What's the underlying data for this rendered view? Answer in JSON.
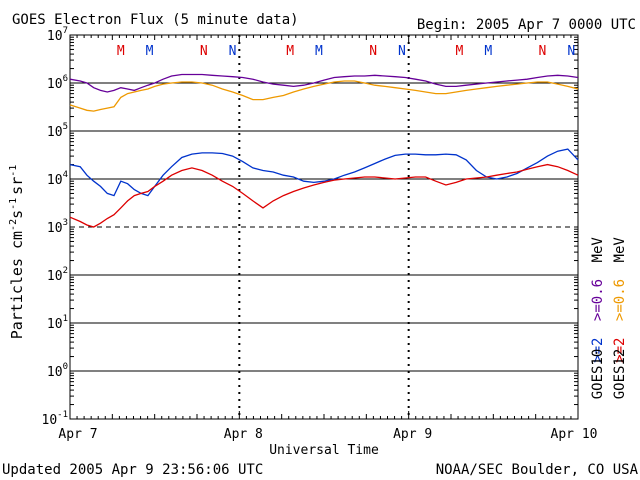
{
  "header": {
    "title": "GOES Electron Flux (5 minute data)",
    "begin": "Begin: 2005 Apr 7 0000 UTC"
  },
  "footer": {
    "updated": "Updated 2005 Apr  9 23:56:06 UTC",
    "credit": "NOAA/SEC Boulder, CO USA"
  },
  "colors": {
    "goes10_high": "#0033cc",
    "goes12_high": "#dd0000",
    "goes10_low": "#660099",
    "goes12_low": "#ee9900",
    "M_marker": "#dd0000",
    "N_marker": "#0033cc"
  },
  "chart_data": {
    "type": "line",
    "title": "GOES Electron Flux (5 minute data)",
    "xlabel": "Universal Time",
    "ylabel": "Particles cm-2s-1sr-1",
    "ylabel_main": "Particles cm",
    "ylabel_sup1": "-2",
    "ylabel_mid": "s",
    "ylabel_sup2": "-1",
    "ylabel_mid2": "sr",
    "ylabel_sup3": "-1",
    "x_ticks": [
      "Apr 7",
      "Apr 8",
      "Apr 9",
      "Apr 10"
    ],
    "xlim": [
      0,
      3
    ],
    "ylim": [
      0.1,
      10000000
    ],
    "yscale": "log",
    "y_ticks": [
      {
        "base": "10",
        "exp": "-1",
        "value": 0.1
      },
      {
        "base": "10",
        "exp": "0",
        "value": 1
      },
      {
        "base": "10",
        "exp": "1",
        "value": 10
      },
      {
        "base": "10",
        "exp": "2",
        "value": 100
      },
      {
        "base": "10",
        "exp": "3",
        "value": 1000
      },
      {
        "base": "10",
        "exp": "4",
        "value": 10000
      },
      {
        "base": "10",
        "exp": "5",
        "value": 100000
      },
      {
        "base": "10",
        "exp": "6",
        "value": 1000000
      },
      {
        "base": "10",
        "exp": "7",
        "value": 10000000
      }
    ],
    "threshold": 1000,
    "markers": [
      {
        "label": "M",
        "x": 0.3,
        "color": "#dd0000"
      },
      {
        "label": "M",
        "x": 0.47,
        "color": "#0033cc"
      },
      {
        "label": "N",
        "x": 0.79,
        "color": "#dd0000"
      },
      {
        "label": "N",
        "x": 0.96,
        "color": "#0033cc"
      },
      {
        "label": "M",
        "x": 1.3,
        "color": "#dd0000"
      },
      {
        "label": "M",
        "x": 1.47,
        "color": "#0033cc"
      },
      {
        "label": "N",
        "x": 1.79,
        "color": "#dd0000"
      },
      {
        "label": "N",
        "x": 1.96,
        "color": "#0033cc"
      },
      {
        "label": "M",
        "x": 2.3,
        "color": "#dd0000"
      },
      {
        "label": "M",
        "x": 2.47,
        "color": "#0033cc"
      },
      {
        "label": "N",
        "x": 2.79,
        "color": "#dd0000"
      },
      {
        "label": "N",
        "x": 2.96,
        "color": "#0033cc"
      }
    ],
    "legend": {
      "satellites": [
        "GOES10",
        "GOES12"
      ],
      "high_prefix": ">=2",
      "low_prefix": ">=0.6",
      "unit": "MeV"
    },
    "series": [
      {
        "key": "goes10_high",
        "color": "#0033cc",
        "x": [
          0,
          0.06,
          0.1,
          0.14,
          0.18,
          0.22,
          0.26,
          0.3,
          0.34,
          0.38,
          0.42,
          0.46,
          0.5,
          0.55,
          0.6,
          0.66,
          0.72,
          0.78,
          0.84,
          0.9,
          0.96,
          1.02,
          1.08,
          1.14,
          1.2,
          1.26,
          1.32,
          1.38,
          1.44,
          1.5,
          1.56,
          1.62,
          1.68,
          1.74,
          1.8,
          1.86,
          1.92,
          1.98,
          2.04,
          2.1,
          2.16,
          2.22,
          2.28,
          2.34,
          2.4,
          2.46,
          2.52,
          2.58,
          2.64,
          2.7,
          2.76,
          2.82,
          2.88,
          2.94,
          3.0
        ],
        "y": [
          20000,
          18000,
          12000,
          9000,
          7000,
          5000,
          4500,
          9000,
          8000,
          6000,
          5000,
          4500,
          7000,
          12000,
          18000,
          28000,
          33000,
          35000,
          35000,
          34000,
          30000,
          23000,
          17000,
          15000,
          14000,
          12000,
          11000,
          9000,
          8500,
          9000,
          10000,
          12000,
          14000,
          17000,
          21000,
          26000,
          31000,
          33000,
          33000,
          32000,
          32000,
          33000,
          32000,
          25000,
          15000,
          11000,
          10000,
          11000,
          13000,
          17000,
          22000,
          30000,
          38000,
          42000,
          25000
        ]
      },
      {
        "key": "goes12_high",
        "color": "#dd0000",
        "x": [
          0,
          0.06,
          0.1,
          0.14,
          0.18,
          0.22,
          0.26,
          0.3,
          0.34,
          0.38,
          0.42,
          0.46,
          0.5,
          0.55,
          0.6,
          0.66,
          0.72,
          0.78,
          0.84,
          0.9,
          0.96,
          1.02,
          1.08,
          1.14,
          1.2,
          1.26,
          1.32,
          1.38,
          1.44,
          1.5,
          1.56,
          1.62,
          1.68,
          1.74,
          1.8,
          1.86,
          1.92,
          1.98,
          2.04,
          2.1,
          2.16,
          2.22,
          2.28,
          2.34,
          2.4,
          2.46,
          2.52,
          2.58,
          2.64,
          2.7,
          2.76,
          2.82,
          2.88,
          2.94,
          3.0
        ],
        "y": [
          1600,
          1300,
          1100,
          1000,
          1200,
          1500,
          1800,
          2500,
          3500,
          4500,
          5000,
          5500,
          7000,
          9000,
          12000,
          15000,
          17000,
          15000,
          12000,
          9000,
          7000,
          5000,
          3500,
          2500,
          3500,
          4500,
          5500,
          6500,
          7500,
          8500,
          9500,
          10000,
          10500,
          11000,
          11000,
          10500,
          10000,
          10500,
          11000,
          11000,
          9000,
          7500,
          8500,
          10000,
          10500,
          11000,
          12000,
          13000,
          14000,
          16000,
          18000,
          20000,
          18000,
          15000,
          12000
        ]
      },
      {
        "key": "goes10_low",
        "color": "#660099",
        "x": [
          0,
          0.06,
          0.1,
          0.14,
          0.18,
          0.22,
          0.26,
          0.3,
          0.34,
          0.38,
          0.42,
          0.46,
          0.5,
          0.55,
          0.6,
          0.66,
          0.72,
          0.78,
          0.84,
          0.9,
          0.96,
          1.02,
          1.08,
          1.14,
          1.2,
          1.26,
          1.32,
          1.38,
          1.44,
          1.5,
          1.56,
          1.62,
          1.68,
          1.74,
          1.8,
          1.86,
          1.92,
          1.98,
          2.04,
          2.1,
          2.16,
          2.22,
          2.28,
          2.34,
          2.4,
          2.46,
          2.52,
          2.58,
          2.64,
          2.7,
          2.76,
          2.82,
          2.88,
          2.94,
          3.0
        ],
        "y": [
          1200000,
          1100000,
          1000000,
          800000,
          700000,
          650000,
          700000,
          800000,
          750000,
          700000,
          800000,
          900000,
          1000000,
          1200000,
          1400000,
          1500000,
          1500000,
          1500000,
          1450000,
          1400000,
          1350000,
          1300000,
          1200000,
          1050000,
          950000,
          900000,
          850000,
          900000,
          1000000,
          1150000,
          1300000,
          1350000,
          1400000,
          1400000,
          1450000,
          1400000,
          1350000,
          1300000,
          1200000,
          1100000,
          950000,
          850000,
          850000,
          900000,
          950000,
          1000000,
          1050000,
          1100000,
          1150000,
          1200000,
          1300000,
          1400000,
          1450000,
          1400000,
          1300000
        ]
      },
      {
        "key": "goes12_low",
        "color": "#ee9900",
        "x": [
          0,
          0.06,
          0.1,
          0.14,
          0.18,
          0.22,
          0.26,
          0.3,
          0.34,
          0.38,
          0.42,
          0.46,
          0.5,
          0.55,
          0.6,
          0.66,
          0.72,
          0.78,
          0.84,
          0.9,
          0.96,
          1.02,
          1.08,
          1.14,
          1.2,
          1.26,
          1.32,
          1.38,
          1.44,
          1.5,
          1.56,
          1.62,
          1.68,
          1.74,
          1.8,
          1.86,
          1.92,
          1.98,
          2.04,
          2.1,
          2.16,
          2.22,
          2.28,
          2.34,
          2.4,
          2.46,
          2.52,
          2.58,
          2.64,
          2.7,
          2.76,
          2.82,
          2.88,
          2.94,
          3.0
        ],
        "y": [
          350000,
          300000,
          270000,
          260000,
          280000,
          300000,
          320000,
          500000,
          600000,
          650000,
          700000,
          750000,
          850000,
          950000,
          1000000,
          1050000,
          1050000,
          1000000,
          900000,
          750000,
          650000,
          550000,
          450000,
          450000,
          500000,
          550000,
          650000,
          750000,
          850000,
          950000,
          1050000,
          1100000,
          1100000,
          1000000,
          900000,
          850000,
          800000,
          750000,
          700000,
          650000,
          600000,
          600000,
          650000,
          700000,
          750000,
          800000,
          850000,
          900000,
          950000,
          1000000,
          1050000,
          1050000,
          950000,
          850000,
          750000
        ]
      }
    ]
  }
}
